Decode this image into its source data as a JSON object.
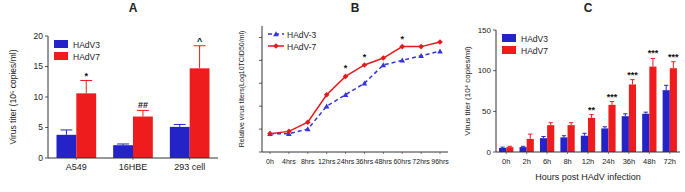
{
  "chart_data": [
    {
      "type": "bar",
      "title": "A",
      "y_label": "Virus titer (10⁵ copies/ml)",
      "categories": [
        "A549",
        "16HBE",
        "293 cell"
      ],
      "series": [
        {
          "name": "HAdV3",
          "color": "#2323c8",
          "values": [
            3.8,
            2.1,
            5.1
          ],
          "errors": [
            0.8,
            0.2,
            0.4
          ]
        },
        {
          "name": "HAdV7",
          "color": "#ee1c1c",
          "values": [
            10.6,
            6.8,
            14.7
          ],
          "errors": [
            2.1,
            1.0,
            3.7
          ]
        }
      ],
      "ylim": [
        0,
        20
      ],
      "yticks": [
        0,
        5,
        10,
        15,
        20
      ],
      "grid": false,
      "legend": "upper left",
      "annotations": [
        {
          "text": "*",
          "series": 1,
          "index": 0
        },
        {
          "text": "##",
          "series": 1,
          "index": 1
        },
        {
          "text": "^",
          "series": 1,
          "index": 2
        }
      ]
    },
    {
      "type": "line",
      "title": "B",
      "y_label": "Relative virus titers(Log10TCID50/ml)",
      "categories": [
        "0h",
        "4hrs",
        "8hrs",
        "12hrs",
        "24hrs",
        "36hrs",
        "48hrs",
        "60hrs",
        "72hrs",
        "96hrs"
      ],
      "series": [
        {
          "name": "HAdV-3",
          "color": "#3434d8",
          "line_style": "dashed",
          "marker": "triangle",
          "values": [
            0.8,
            0.8,
            1.0,
            2.0,
            2.5,
            3.0,
            3.8,
            4.0,
            4.2,
            4.4
          ]
        },
        {
          "name": "HAdV-7",
          "color": "#e31a1c",
          "line_style": "solid",
          "marker": "diamond",
          "values": [
            0.8,
            0.9,
            1.3,
            2.5,
            3.3,
            3.8,
            4.1,
            4.6,
            4.6,
            4.8
          ]
        }
      ],
      "ylim": [
        0,
        5.5
      ],
      "yticks": [
        0,
        1,
        2,
        3,
        4,
        5
      ],
      "tick_labels": "x",
      "grid": false,
      "legend": "upper left",
      "annotations": [
        {
          "text": "*",
          "series": 1,
          "index": 4
        },
        {
          "text": "*",
          "series": 1,
          "index": 5
        },
        {
          "text": "*",
          "series": 1,
          "index": 7
        }
      ]
    },
    {
      "type": "bar",
      "title": "C",
      "x_label": "Hours post HAdV infection",
      "y_label": "Virus titer (10⁴ copies/ml)",
      "categories": [
        "0h",
        "2h",
        "6h",
        "8h",
        "12h",
        "24h",
        "36h",
        "48h",
        "72h"
      ],
      "series": [
        {
          "name": "HAdV3",
          "color": "#2323c8",
          "values": [
            5,
            6,
            17,
            18,
            20,
            29,
            44,
            47,
            76
          ],
          "errors": [
            1,
            1,
            2,
            2,
            3,
            2,
            3,
            2,
            6
          ]
        },
        {
          "name": "HAdV7",
          "color": "#ee1c1c",
          "values": [
            6,
            16,
            33,
            33,
            42,
            58,
            83,
            105,
            103
          ],
          "errors": [
            1,
            6,
            3,
            3,
            4,
            4,
            6,
            10,
            8
          ]
        }
      ],
      "ylim": [
        0,
        150
      ],
      "yticks": [
        0,
        50,
        100,
        150
      ],
      "grid": false,
      "legend": "upper left",
      "annotations": [
        {
          "text": "**",
          "series": 1,
          "index": 4
        },
        {
          "text": "***",
          "series": 1,
          "index": 5
        },
        {
          "text": "***",
          "series": 1,
          "index": 6
        },
        {
          "text": "***",
          "series": 1,
          "index": 7
        },
        {
          "text": "***",
          "series": 1,
          "index": 8
        }
      ]
    }
  ]
}
